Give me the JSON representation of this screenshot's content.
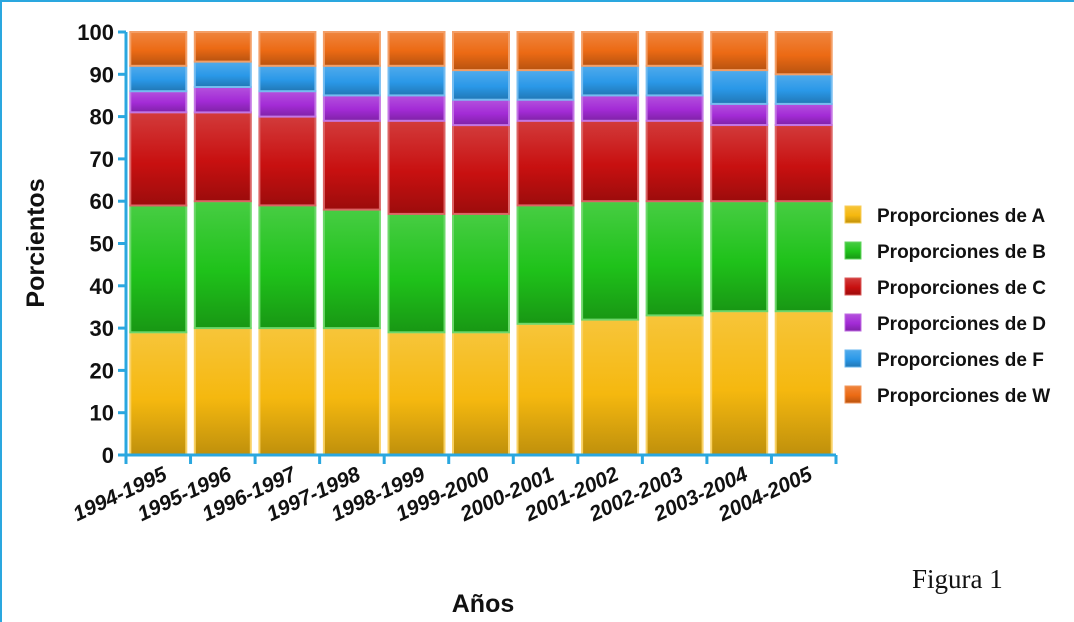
{
  "chart_data": {
    "type": "bar",
    "stacked": true,
    "xlabel": "Años",
    "ylabel": "Porcientos",
    "ylim": [
      0,
      100
    ],
    "yticks": [
      0,
      10,
      20,
      30,
      40,
      50,
      60,
      70,
      80,
      90,
      100
    ],
    "categories": [
      "1994-1995",
      "1995-1996",
      "1996-1997",
      "1997-1998",
      "1998-1999",
      "1999-2000",
      "2000-2001",
      "2001-2002",
      "2002-2003",
      "2003-2004",
      "2004-2005"
    ],
    "series": [
      {
        "name": "Proporciones de A",
        "color": "#f5b80f",
        "values": [
          29,
          30,
          30,
          30,
          29,
          29,
          31,
          32,
          33,
          34,
          34
        ]
      },
      {
        "name": "Proporciones de B",
        "color": "#1fc21a",
        "values": [
          30,
          30,
          29,
          28,
          28,
          28,
          28,
          28,
          27,
          26,
          26
        ]
      },
      {
        "name": "Proporciones de C",
        "color": "#c81010",
        "values": [
          22,
          21,
          21,
          21,
          22,
          21,
          20,
          19,
          19,
          18,
          18
        ]
      },
      {
        "name": "Proporciones de D",
        "color": "#a32bd6",
        "values": [
          5,
          6,
          6,
          6,
          6,
          6,
          5,
          6,
          6,
          5,
          5
        ]
      },
      {
        "name": "Proporciones de F",
        "color": "#2a98e8",
        "values": [
          6,
          6,
          6,
          7,
          7,
          7,
          7,
          7,
          7,
          8,
          7
        ]
      },
      {
        "name": "Proporciones de W",
        "color": "#ec6a14",
        "values": [
          8,
          7,
          8,
          8,
          8,
          9,
          9,
          8,
          8,
          9,
          10
        ]
      }
    ],
    "grid": false,
    "legend_position": "right"
  },
  "caption": "Figura 1"
}
